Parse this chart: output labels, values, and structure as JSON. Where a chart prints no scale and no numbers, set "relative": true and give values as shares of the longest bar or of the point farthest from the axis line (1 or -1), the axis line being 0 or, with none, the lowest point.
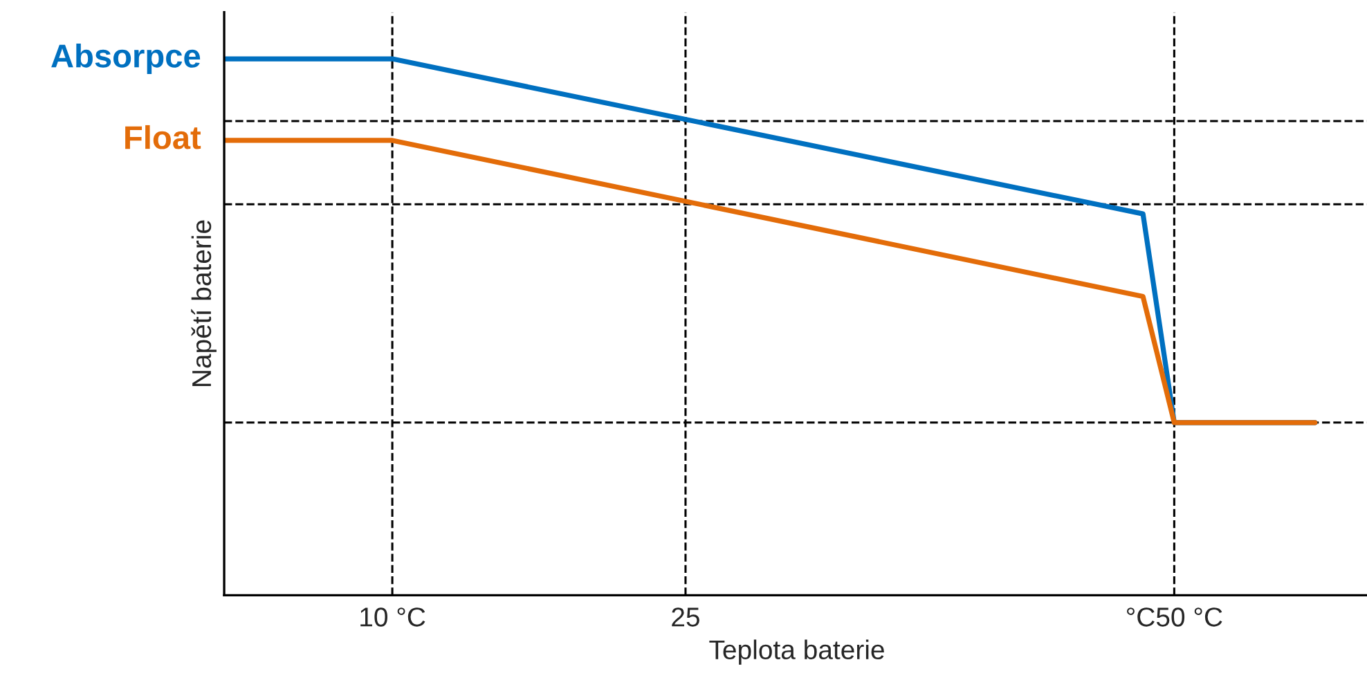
{
  "chart_data": {
    "type": "line",
    "relative": true,
    "xlabel": "Teplota baterie",
    "ylabel": "Napětí baterie",
    "xlim": [
      1.4,
      60
    ],
    "xticks": [
      {
        "value": 10,
        "label": "10 °C"
      },
      {
        "value": 25,
        "label": "25"
      },
      {
        "value": 50,
        "label": "°C50 °C"
      }
    ],
    "grid": false,
    "legend": false,
    "marker": "none",
    "line_style": "solid",
    "series": [
      {
        "name": "Absorpce",
        "color": "#0070c0",
        "x": [
          1.4,
          10,
          48.4,
          50,
          57.2
        ],
        "values": [
          1.0,
          1.0,
          0.711,
          0.322,
          0.322
        ]
      },
      {
        "name": "Float",
        "color": "#e36c09",
        "x": [
          1.4,
          10,
          48.4,
          50,
          57.2
        ],
        "values": [
          0.848,
          0.848,
          0.557,
          0.322,
          0.322
        ]
      }
    ],
    "ref_lines": [
      {
        "axis": "x",
        "value": 10,
        "color": "#000000",
        "line_style": "dashed"
      },
      {
        "axis": "x",
        "value": 25,
        "color": "#000000",
        "line_style": "dashed"
      },
      {
        "axis": "x",
        "value": 50,
        "color": "#000000",
        "line_style": "dashed"
      },
      {
        "axis": "y",
        "value": 0.884,
        "color": "#000000",
        "line_style": "dashed"
      },
      {
        "axis": "y",
        "value": 0.729,
        "color": "#000000",
        "line_style": "dashed"
      },
      {
        "axis": "y",
        "value": 0.322,
        "color": "#000000",
        "line_style": "dashed"
      }
    ]
  }
}
